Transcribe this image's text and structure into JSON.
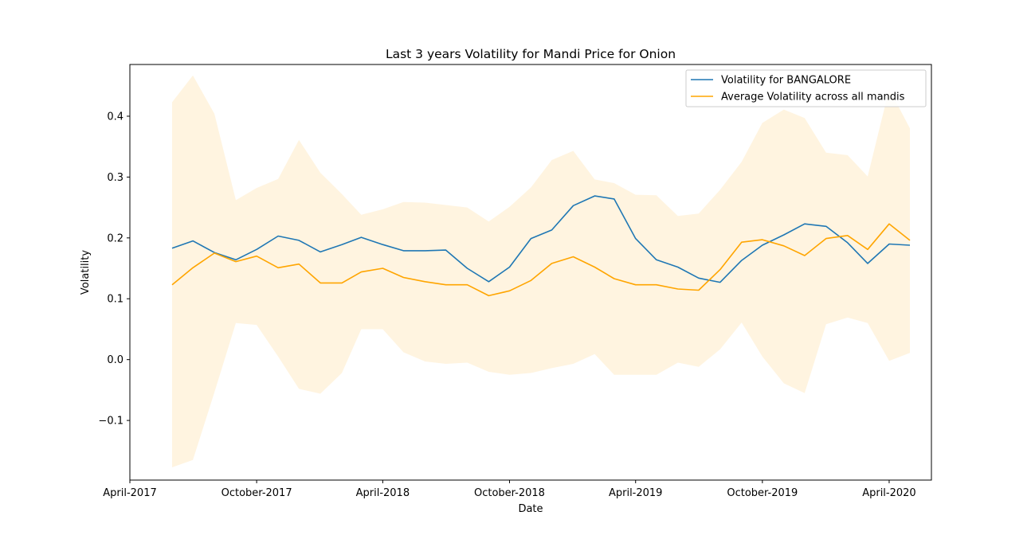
{
  "chart_data": {
    "type": "line",
    "title": "Last 3 years Volatility for Mandi Price for Onion",
    "xlabel": "Date",
    "ylabel": "Volatility",
    "x_axis": {
      "type": "date",
      "range": [
        "2017-04-01",
        "2020-06-01"
      ],
      "ticks": [
        {
          "date": "2017-04-01",
          "label": "April-2017"
        },
        {
          "date": "2017-10-01",
          "label": "October-2017"
        },
        {
          "date": "2018-04-01",
          "label": "April-2018"
        },
        {
          "date": "2018-10-01",
          "label": "October-2018"
        },
        {
          "date": "2019-04-01",
          "label": "April-2019"
        },
        {
          "date": "2019-10-01",
          "label": "October-2019"
        },
        {
          "date": "2020-04-01",
          "label": "April-2020"
        }
      ]
    },
    "y_axis": {
      "range": [
        -0.198,
        0.485
      ],
      "ticks": [
        {
          "value": -0.1,
          "label": "−0.1"
        },
        {
          "value": 0.0,
          "label": "0.0"
        },
        {
          "value": 0.1,
          "label": "0.1"
        },
        {
          "value": 0.2,
          "label": "0.2"
        },
        {
          "value": 0.3,
          "label": "0.3"
        },
        {
          "value": 0.4,
          "label": "0.4"
        }
      ]
    },
    "grid": false,
    "legend_position": "upper-right",
    "x": [
      "2017-06-01",
      "2017-07-01",
      "2017-08-01",
      "2017-09-01",
      "2017-10-01",
      "2017-11-01",
      "2017-12-01",
      "2018-01-01",
      "2018-02-01",
      "2018-03-01",
      "2018-04-01",
      "2018-05-01",
      "2018-06-01",
      "2018-07-01",
      "2018-08-01",
      "2018-09-01",
      "2018-10-01",
      "2018-11-01",
      "2018-12-01",
      "2019-01-01",
      "2019-02-01",
      "2019-03-01",
      "2019-04-01",
      "2019-05-01",
      "2019-06-01",
      "2019-07-01",
      "2019-08-01",
      "2019-09-01",
      "2019-10-01",
      "2019-11-01",
      "2019-12-01",
      "2020-01-01",
      "2020-02-01",
      "2020-03-01",
      "2020-04-01",
      "2020-05-01"
    ],
    "series": [
      {
        "name": "Volatility for BANGALORE",
        "color": "#1f77b4",
        "values": [
          0.183,
          0.195,
          0.176,
          0.164,
          0.181,
          0.203,
          0.196,
          0.177,
          0.189,
          0.201,
          0.189,
          0.179,
          0.179,
          0.18,
          0.15,
          0.128,
          0.152,
          0.199,
          0.213,
          0.253,
          0.269,
          0.264,
          0.199,
          0.164,
          0.152,
          0.134,
          0.127,
          0.163,
          0.188,
          0.205,
          0.223,
          0.219,
          0.192,
          0.158,
          0.19,
          0.188
        ]
      },
      {
        "name": " Average Volatility across all mandis",
        "color": "#ffa500",
        "values": [
          0.123,
          0.151,
          0.175,
          0.161,
          0.17,
          0.151,
          0.157,
          0.126,
          0.126,
          0.144,
          0.15,
          0.135,
          0.128,
          0.123,
          0.123,
          0.105,
          0.113,
          0.13,
          0.158,
          0.169,
          0.152,
          0.133,
          0.123,
          0.123,
          0.116,
          0.114,
          0.148,
          0.193,
          0.197,
          0.187,
          0.171,
          0.199,
          0.204,
          0.181,
          0.223,
          0.196
        ],
        "band": {
          "color": "#ffa500",
          "opacity": 0.12,
          "upper": [
            0.423,
            0.467,
            0.404,
            0.262,
            0.282,
            0.297,
            0.361,
            0.307,
            0.272,
            0.238,
            0.247,
            0.259,
            0.258,
            0.254,
            0.25,
            0.227,
            0.251,
            0.283,
            0.328,
            0.343,
            0.296,
            0.29,
            0.271,
            0.27,
            0.236,
            0.24,
            0.279,
            0.325,
            0.389,
            0.411,
            0.397,
            0.34,
            0.336,
            0.301,
            0.445,
            0.38
          ],
          "lower": [
            -0.177,
            -0.165,
            -0.054,
            0.06,
            0.057,
            0.005,
            -0.048,
            -0.056,
            -0.022,
            0.05,
            0.05,
            0.012,
            -0.003,
            -0.007,
            -0.005,
            -0.02,
            -0.025,
            -0.022,
            -0.014,
            -0.007,
            0.009,
            -0.025,
            -0.025,
            -0.025,
            -0.005,
            -0.012,
            0.017,
            0.061,
            0.005,
            -0.039,
            -0.055,
            0.058,
            0.069,
            0.06,
            -0.002,
            0.011
          ]
        }
      }
    ]
  }
}
